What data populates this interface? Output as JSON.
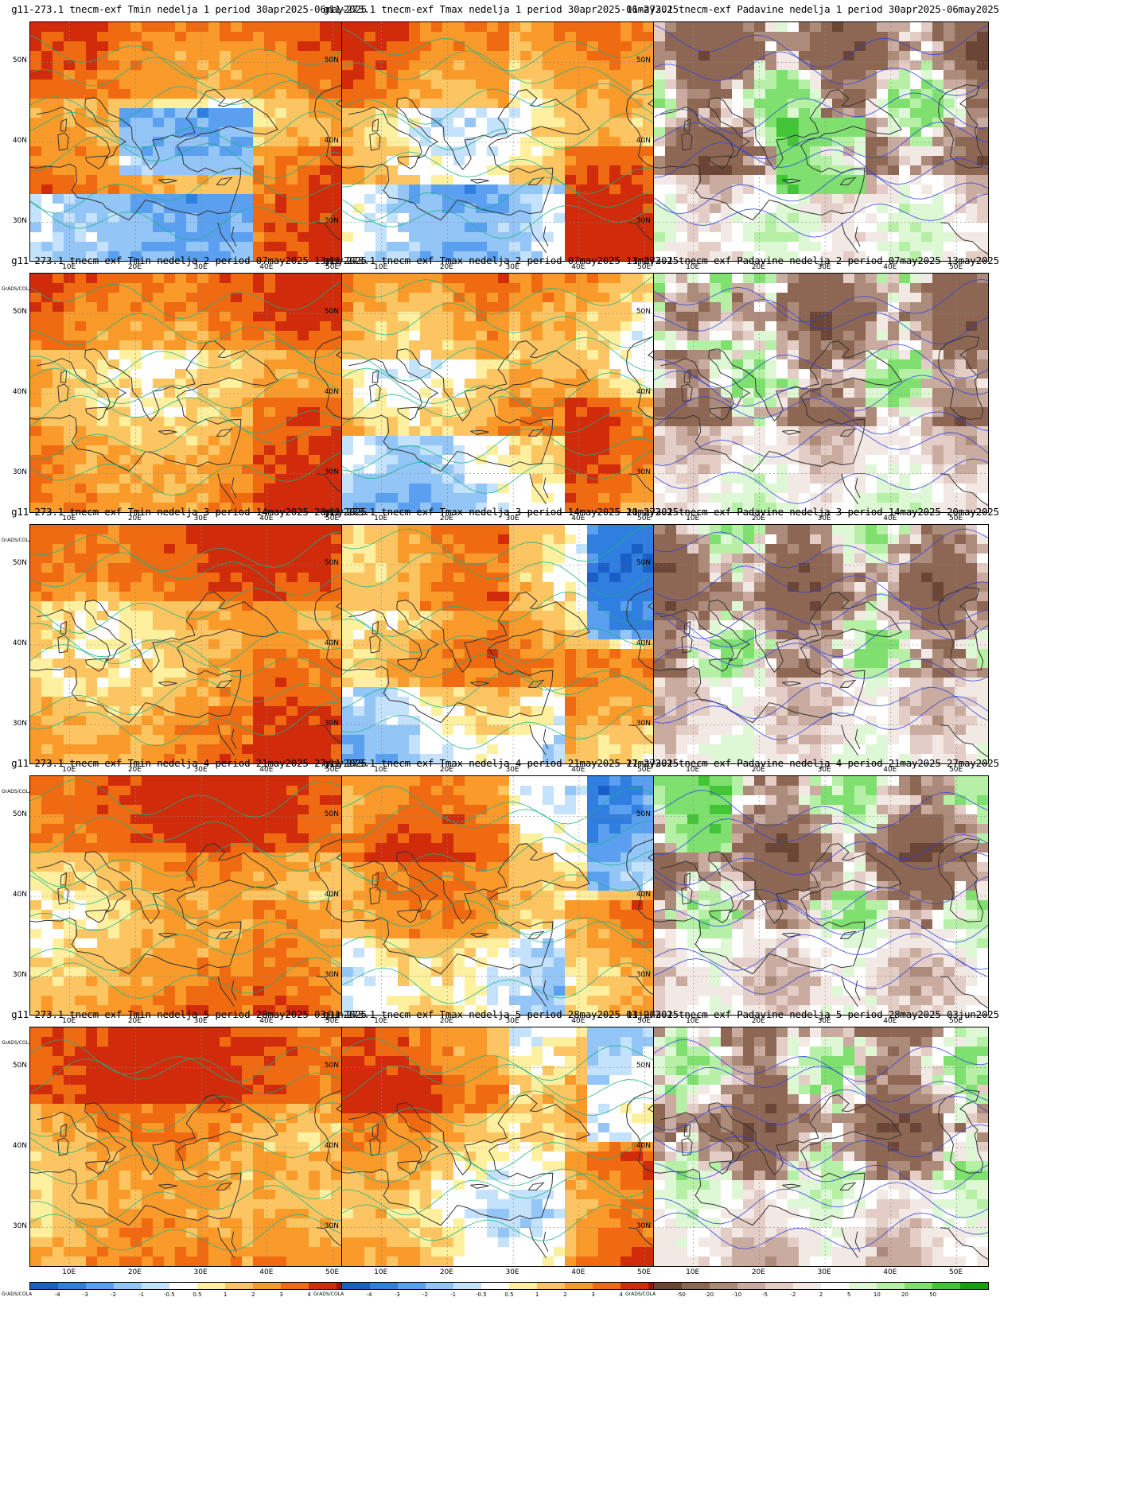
{
  "rows": 5,
  "cols": 3,
  "credit": "GrADS/COLA",
  "lat_ticks": [
    "50N",
    "40N",
    "30N"
  ],
  "lon_ticks": [
    "10E",
    "20E",
    "30E",
    "40E",
    "50E"
  ],
  "temp_scale": {
    "labels": [
      "-4",
      "-3",
      "-2",
      "-1",
      "-0.5",
      "0.5",
      "1",
      "2",
      "3",
      "4"
    ],
    "colors": [
      "#1a5fc8",
      "#2f7ee0",
      "#5a9ff0",
      "#93c5f7",
      "#c4e2fb",
      "#ffffff",
      "#fff0a0",
      "#fdc561",
      "#f99a2b",
      "#ef6a10",
      "#d02b0a",
      "#9c1309"
    ]
  },
  "precip_scale": {
    "labels": [
      "-50",
      "-20",
      "-10",
      "-5",
      "-2",
      "2",
      "5",
      "10",
      "20",
      "50"
    ],
    "colors": [
      "#6b4636",
      "#8e6754",
      "#ad8b7b",
      "#c9aba0",
      "#e3cdc6",
      "#f3e9e4",
      "#ffffff",
      "#def8d6",
      "#b5f0a6",
      "#7fe070",
      "#44c437",
      "#15a012"
    ]
  },
  "panels": [
    {
      "title": "g11-273.1 tnecm-exf Tmin nedelja 1 period 30apr2025-06may2025",
      "type": "tmin"
    },
    {
      "title": "g11-273.1 tnecm-exf Tmax nedelja 1 period 30apr2025-06may2025",
      "type": "tmax"
    },
    {
      "title": "11-273.1 tnecm-exf Padavine nedelja 1 period 30apr2025-06may2025",
      "type": "precip"
    },
    {
      "title": "g11-273.1 tnecm-exf Tmin nedelja 2 period 07may2025-13may2025",
      "type": "tmin"
    },
    {
      "title": "g11-273.1 tnecm-exf Tmax nedelja 2 period 07may2025-13may2025",
      "type": "tmax"
    },
    {
      "title": "11-273.1 tnecm-exf Padavine nedelja 2 period 07may2025-13may2025",
      "type": "precip"
    },
    {
      "title": "g11-273.1 tnecm-exf Tmin nedelja 3 period 14may2025-20may2025",
      "type": "tmin"
    },
    {
      "title": "g11-273.1 tnecm-exf Tmax nedelja 3 period 14may2025-20may2025",
      "type": "tmax"
    },
    {
      "title": "11-273.1 tnecm-exf Padavine nedelja 3 period 14may2025-20may2025",
      "type": "precip"
    },
    {
      "title": "g11-273.1 tnecm-exf Tmin nedelja 4 period 21may2025-27may2025",
      "type": "tmin"
    },
    {
      "title": "g11-273.1 tnecm-exf Tmax nedelja 4 period 21may2025-27may2025",
      "type": "tmax"
    },
    {
      "title": "11-273.1 tnecm-exf Padavine nedelja 4 period 21may2025-27may2025",
      "type": "precip"
    },
    {
      "title": "g11-273.1 tnecm-exf Tmin nedelja 5 period 28may2025-03jun2025",
      "type": "tmin"
    },
    {
      "title": "g11-273.1 tnecm-exf Tmax nedelja 5 period 28may2025-03jun2025",
      "type": "tmax"
    },
    {
      "title": "11-273.1 tnecm-exf Padavine nedelja 5 period 28may2025-03jun2025",
      "type": "precip"
    }
  ]
}
